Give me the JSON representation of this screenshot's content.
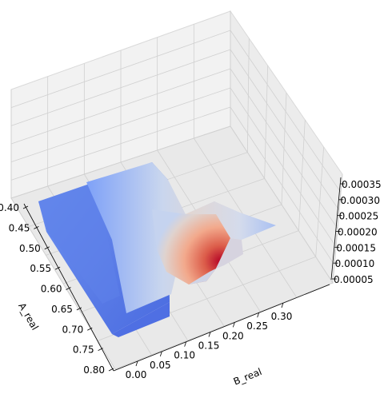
{
  "chart_data": {
    "type": "surface3d",
    "title": "",
    "xlabel": "A_real",
    "ylabel": "B_real",
    "zlabel": "",
    "colormap": "coolwarm",
    "colormap_low": "#3b4cc0",
    "colormap_mid": "#dddddd",
    "colormap_high": "#b40426",
    "pane_color": "#f2f2f2",
    "grid": true,
    "x_ticks": [
      "0.40",
      "0.45",
      "0.50",
      "0.55",
      "0.60",
      "0.65",
      "0.70",
      "0.75",
      "0.80"
    ],
    "y_ticks": [
      "0.00",
      "0.05",
      "0.10",
      "0.15",
      "0.20",
      "0.25",
      "0.30"
    ],
    "z_ticks": [
      "0.00005",
      "0.00010",
      "0.00015",
      "0.00020",
      "0.00025",
      "0.00030",
      "0.00035"
    ],
    "xlim": [
      0.38,
      0.82
    ],
    "ylim": [
      -0.02,
      0.35
    ],
    "zlim": [
      3e-05,
      0.00037
    ],
    "surface_regions": [
      {
        "x": [
          0.4,
          0.6
        ],
        "y": [
          0.0,
          0.1
        ],
        "z": 6e-05
      },
      {
        "x": [
          0.6,
          0.7
        ],
        "y": [
          0.0,
          0.1
        ],
        "z": 7e-05
      },
      {
        "x": [
          0.4,
          0.5
        ],
        "y": [
          0.1,
          0.2
        ],
        "z": 9e-05
      },
      {
        "x": [
          0.5,
          0.6
        ],
        "y": [
          0.1,
          0.2
        ],
        "z": 0.00026
      },
      {
        "x": [
          0.6,
          0.62
        ],
        "y": [
          0.1,
          0.2
        ],
        "z": 0.00035
      },
      {
        "x": [
          0.4,
          0.5
        ],
        "y": [
          0.2,
          0.3
        ],
        "z": 0.00016
      },
      {
        "x": [
          0.5,
          0.55
        ],
        "y": [
          0.2,
          0.3
        ],
        "z": 0.00012
      }
    ]
  }
}
